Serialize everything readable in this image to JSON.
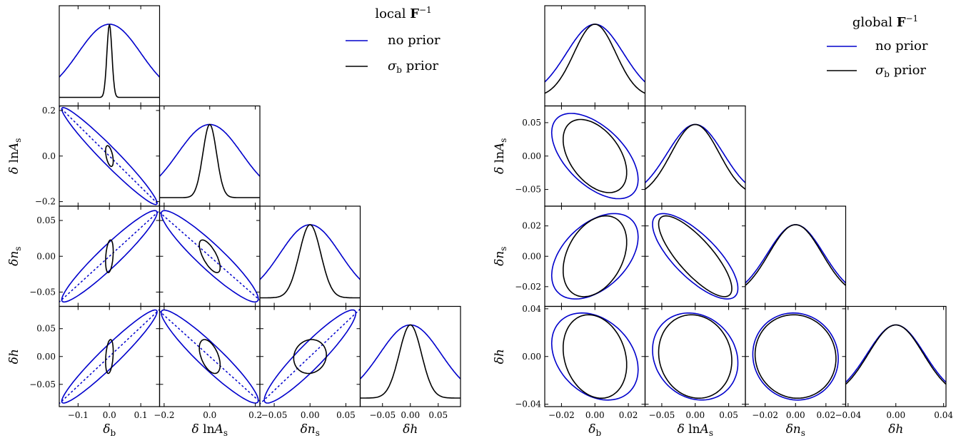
{
  "chart_data": [
    {
      "type": "triangle-corner-plot",
      "legend": {
        "title": "local F⁻¹",
        "entries": [
          {
            "label": "no prior",
            "color": "#0000cc"
          },
          {
            "label": "σb prior",
            "color": "#000000"
          }
        ]
      },
      "parameters": [
        {
          "name": "δb",
          "label": "δ_b",
          "range": [
            -0.16,
            0.16
          ],
          "ticks": [
            -0.1,
            0.0,
            0.1
          ],
          "tick_labels": [
            "−0.1",
            "0.0",
            "0.1"
          ]
        },
        {
          "name": "δlnAs",
          "label": "δ ln A_s",
          "range": [
            -0.22,
            0.22
          ],
          "ticks": [
            -0.2,
            0.0,
            0.2
          ],
          "tick_labels": [
            "−0.2",
            "0.0",
            "0.2"
          ]
        },
        {
          "name": "δns",
          "label": "δ n_s",
          "range": [
            -0.07,
            0.07
          ],
          "ticks": [
            -0.05,
            0.0,
            0.05
          ],
          "tick_labels": [
            "−0.05",
            "0.00",
            "0.05"
          ]
        },
        {
          "name": "δh",
          "label": "δ h",
          "range": [
            -0.09,
            0.09
          ],
          "ticks": [
            -0.05,
            0.0,
            0.05
          ],
          "tick_labels": [
            "−0.05",
            "0.00",
            "0.05"
          ]
        }
      ],
      "sigma": {
        "no prior": [
          0.1,
          0.14,
          0.042,
          0.055
        ],
        "σb prior": [
          0.008,
          0.03,
          0.015,
          0.02
        ]
      },
      "correlation": {
        "no prior": [
          [
            1,
            -0.97,
            0.95,
            0.96
          ],
          [
            -0.97,
            1,
            -0.93,
            -0.94
          ],
          [
            0.95,
            -0.93,
            1,
            0.93
          ],
          [
            0.96,
            -0.94,
            0.93,
            1
          ]
        ],
        "σb prior": [
          [
            1,
            -0.5,
            0.3,
            0.3
          ],
          [
            -0.5,
            1,
            -0.7,
            -0.5
          ],
          [
            0.3,
            -0.7,
            1,
            0.1
          ],
          [
            0.3,
            -0.5,
            0.1,
            1
          ]
        ]
      },
      "degeneracy_lines": true
    },
    {
      "type": "triangle-corner-plot",
      "legend": {
        "title": "global F⁻¹",
        "entries": [
          {
            "label": "no prior",
            "color": "#0000cc"
          },
          {
            "label": "σb prior",
            "color": "#000000"
          }
        ]
      },
      "parameters": [
        {
          "name": "δb",
          "label": "δ_b",
          "range": [
            -0.03,
            0.03
          ],
          "ticks": [
            -0.02,
            0.0,
            0.02
          ],
          "tick_labels": [
            "−0.02",
            "0.00",
            "0.02"
          ]
        },
        {
          "name": "δlnAs",
          "label": "δ ln A_s",
          "range": [
            -0.075,
            0.075
          ],
          "ticks": [
            -0.05,
            0.0,
            0.05
          ],
          "tick_labels": [
            "−0.05",
            "0.00",
            "0.05"
          ]
        },
        {
          "name": "δns",
          "label": "δ n_s",
          "range": [
            -0.033,
            0.033
          ],
          "ticks": [
            -0.02,
            0.0,
            0.02
          ],
          "tick_labels": [
            "−0.02",
            "0.00",
            "0.02"
          ]
        },
        {
          "name": "δh",
          "label": "δ h",
          "range": [
            -0.042,
            0.042
          ],
          "ticks": [
            -0.04,
            0.0,
            0.04
          ],
          "tick_labels": [
            "−0.04",
            "0.00",
            "0.04"
          ]
        }
      ],
      "sigma": {
        "no prior": [
          0.017,
          0.042,
          0.0185,
          0.024
        ],
        "σb prior": [
          0.0125,
          0.036,
          0.0175,
          0.023
        ]
      },
      "correlation": {
        "no prior": [
          [
            1,
            -0.55,
            0.45,
            -0.3
          ],
          [
            -0.55,
            1,
            -0.75,
            -0.15
          ],
          [
            0.45,
            -0.75,
            1,
            -0.05
          ],
          [
            -0.3,
            -0.15,
            -0.05,
            1
          ]
        ],
        "σb prior": [
          [
            1,
            -0.45,
            0.35,
            -0.2
          ],
          [
            -0.45,
            1,
            -0.8,
            -0.1
          ],
          [
            0.35,
            -0.8,
            1,
            -0.05
          ],
          [
            -0.2,
            -0.1,
            -0.05,
            1
          ]
        ]
      },
      "degeneracy_lines": false
    }
  ]
}
